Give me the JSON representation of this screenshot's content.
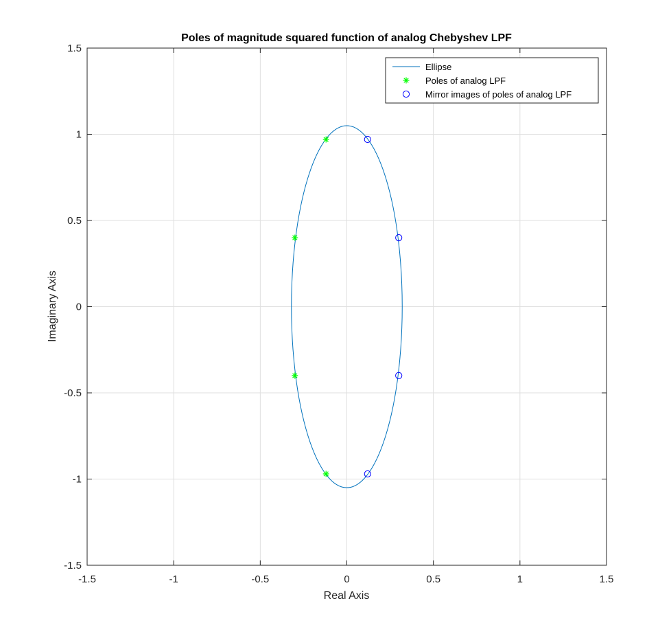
{
  "chart_data": {
    "type": "scatter",
    "title": "Poles of magnitude squared function of analog Chebyshev LPF",
    "xlabel": "Real Axis",
    "ylabel": "Imaginary Axis",
    "xlim": [
      -1.5,
      1.5
    ],
    "ylim": [
      -1.5,
      1.5
    ],
    "xticks": [
      -1.5,
      -1,
      -0.5,
      0,
      0.5,
      1,
      1.5
    ],
    "yticks": [
      -1.5,
      -1,
      -0.5,
      0,
      0.5,
      1,
      1.5
    ],
    "xtick_labels": [
      "-1.5",
      "-1",
      "-0.5",
      "0",
      "0.5",
      "1",
      "1.5"
    ],
    "ytick_labels": [
      "-1.5",
      "-1",
      "-0.5",
      "0",
      "0.5",
      "1",
      "1.5"
    ],
    "grid": true,
    "legend_position": "top-right",
    "series": [
      {
        "name": "Ellipse",
        "kind": "line",
        "color": "#0072BD",
        "shape": "ellipse",
        "center": [
          0,
          0
        ],
        "semi_axis_real": 0.32,
        "semi_axis_imag": 1.05
      },
      {
        "name": "Poles of analog LPF",
        "kind": "marker",
        "marker": "asterisk",
        "color": "#00FF00",
        "points": [
          {
            "x": -0.12,
            "y": 0.97
          },
          {
            "x": -0.3,
            "y": 0.4
          },
          {
            "x": -0.3,
            "y": -0.4
          },
          {
            "x": -0.12,
            "y": -0.97
          }
        ]
      },
      {
        "name": "Mirror images of poles of analog LPF",
        "kind": "marker",
        "marker": "circle",
        "color": "#0000FF",
        "points": [
          {
            "x": 0.12,
            "y": 0.97
          },
          {
            "x": 0.3,
            "y": 0.4
          },
          {
            "x": 0.3,
            "y": -0.4
          },
          {
            "x": 0.12,
            "y": -0.97
          }
        ]
      }
    ]
  }
}
